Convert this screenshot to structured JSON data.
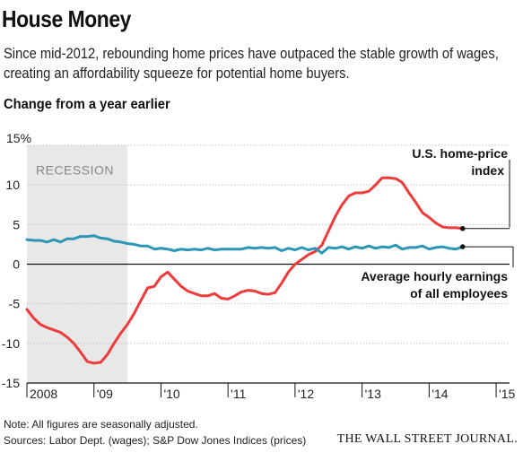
{
  "header": {
    "title": "House Money",
    "subtitle": "Since mid-2012, rebounding home prices have outpaced the stable growth of wages, creating an affordability squeeze for potential home buyers.",
    "axis_title": "Change from a year earlier"
  },
  "footer": {
    "note": "Note: All figures are seasonally adjusted.",
    "sources": "Sources: Labor Dept. (wages); S&P Dow Jones Indices (prices)",
    "brand": "THE WALL STREET JOURNAL."
  },
  "chart_data": {
    "type": "line",
    "title": "House Money",
    "subtitle": "Since mid-2012, rebounding home prices have outpaced the stable growth of wages, creating an affordability squeeze for potential home buyers.",
    "ylabel": "Change from a year earlier",
    "xlim": [
      2008.0,
      2015.2
    ],
    "ylim": [
      -15,
      15
    ],
    "y_ticks": [
      {
        "value": 15,
        "label": "15%"
      },
      {
        "value": 10,
        "label": "10"
      },
      {
        "value": 5,
        "label": "5"
      },
      {
        "value": 0,
        "label": "0"
      },
      {
        "value": -5,
        "label": "-5"
      },
      {
        "value": -10,
        "label": "-10"
      },
      {
        "value": -15,
        "label": "-15"
      }
    ],
    "x_ticks": [
      {
        "value": 2008,
        "label": "2008"
      },
      {
        "value": 2009,
        "label": "'09"
      },
      {
        "value": 2010,
        "label": "'10"
      },
      {
        "value": 2011,
        "label": "'11"
      },
      {
        "value": 2012,
        "label": "'12"
      },
      {
        "value": 2013,
        "label": "'13"
      },
      {
        "value": 2014,
        "label": "'14"
      },
      {
        "value": 2015,
        "label": "'15"
      }
    ],
    "grid": true,
    "shaded_regions": [
      {
        "label": "RECESSION",
        "start": 2008.0,
        "end": 2009.5
      }
    ],
    "series": [
      {
        "name": "U.S. home-price index",
        "color": "#ee3b3b",
        "points": [
          [
            2008.0,
            -5.7
          ],
          [
            2008.1,
            -6.8
          ],
          [
            2008.2,
            -7.6
          ],
          [
            2008.3,
            -8.0
          ],
          [
            2008.4,
            -8.3
          ],
          [
            2008.5,
            -8.6
          ],
          [
            2008.6,
            -9.2
          ],
          [
            2008.7,
            -10.0
          ],
          [
            2008.8,
            -11.1
          ],
          [
            2008.9,
            -12.3
          ],
          [
            2009.0,
            -12.5
          ],
          [
            2009.1,
            -12.4
          ],
          [
            2009.2,
            -11.4
          ],
          [
            2009.3,
            -10.0
          ],
          [
            2009.4,
            -8.7
          ],
          [
            2009.5,
            -7.6
          ],
          [
            2009.6,
            -6.2
          ],
          [
            2009.7,
            -4.6
          ],
          [
            2009.8,
            -3.0
          ],
          [
            2009.9,
            -2.8
          ],
          [
            2010.0,
            -1.6
          ],
          [
            2010.1,
            -1.0
          ],
          [
            2010.2,
            -1.9
          ],
          [
            2010.3,
            -2.8
          ],
          [
            2010.4,
            -3.4
          ],
          [
            2010.5,
            -3.7
          ],
          [
            2010.6,
            -4.0
          ],
          [
            2010.7,
            -4.0
          ],
          [
            2010.8,
            -3.7
          ],
          [
            2010.9,
            -4.3
          ],
          [
            2011.0,
            -4.4
          ],
          [
            2011.1,
            -4.0
          ],
          [
            2011.2,
            -3.5
          ],
          [
            2011.3,
            -3.3
          ],
          [
            2011.4,
            -3.4
          ],
          [
            2011.5,
            -3.7
          ],
          [
            2011.6,
            -3.8
          ],
          [
            2011.7,
            -3.6
          ],
          [
            2011.8,
            -2.4
          ],
          [
            2011.9,
            -1.0
          ],
          [
            2012.0,
            0.0
          ],
          [
            2012.1,
            0.6
          ],
          [
            2012.2,
            1.2
          ],
          [
            2012.3,
            1.6
          ],
          [
            2012.4,
            2.4
          ],
          [
            2012.5,
            4.2
          ],
          [
            2012.6,
            6.0
          ],
          [
            2012.7,
            7.5
          ],
          [
            2012.8,
            8.6
          ],
          [
            2012.9,
            9.0
          ],
          [
            2013.0,
            9.0
          ],
          [
            2013.1,
            9.2
          ],
          [
            2013.2,
            10.0
          ],
          [
            2013.3,
            10.9
          ],
          [
            2013.4,
            10.9
          ],
          [
            2013.5,
            10.8
          ],
          [
            2013.6,
            10.3
          ],
          [
            2013.7,
            9.0
          ],
          [
            2013.8,
            7.8
          ],
          [
            2013.9,
            6.5
          ],
          [
            2014.0,
            5.9
          ],
          [
            2014.1,
            5.2
          ],
          [
            2014.2,
            4.7
          ],
          [
            2014.3,
            4.6
          ],
          [
            2014.4,
            4.6
          ],
          [
            2014.5,
            4.5
          ]
        ]
      },
      {
        "name": "Average hourly earnings of all employees",
        "color": "#2b96b5",
        "points": [
          [
            2008.0,
            3.1
          ],
          [
            2008.1,
            3.0
          ],
          [
            2008.2,
            3.0
          ],
          [
            2008.3,
            2.8
          ],
          [
            2008.4,
            3.1
          ],
          [
            2008.5,
            2.8
          ],
          [
            2008.6,
            3.2
          ],
          [
            2008.7,
            3.2
          ],
          [
            2008.8,
            3.5
          ],
          [
            2008.9,
            3.5
          ],
          [
            2009.0,
            3.6
          ],
          [
            2009.1,
            3.3
          ],
          [
            2009.2,
            3.2
          ],
          [
            2009.3,
            2.9
          ],
          [
            2009.4,
            2.8
          ],
          [
            2009.5,
            2.6
          ],
          [
            2009.6,
            2.5
          ],
          [
            2009.7,
            2.3
          ],
          [
            2009.8,
            2.3
          ],
          [
            2009.9,
            1.9
          ],
          [
            2010.0,
            2.0
          ],
          [
            2010.1,
            1.9
          ],
          [
            2010.2,
            1.7
          ],
          [
            2010.3,
            1.9
          ],
          [
            2010.4,
            1.8
          ],
          [
            2010.5,
            1.9
          ],
          [
            2010.6,
            1.8
          ],
          [
            2010.7,
            2.0
          ],
          [
            2010.8,
            1.8
          ],
          [
            2010.9,
            1.9
          ],
          [
            2011.0,
            1.9
          ],
          [
            2011.1,
            1.9
          ],
          [
            2011.2,
            1.9
          ],
          [
            2011.3,
            2.1
          ],
          [
            2011.4,
            2.0
          ],
          [
            2011.5,
            2.1
          ],
          [
            2011.6,
            2.0
          ],
          [
            2011.7,
            2.1
          ],
          [
            2011.8,
            1.7
          ],
          [
            2011.9,
            2.0
          ],
          [
            2012.0,
            1.8
          ],
          [
            2012.1,
            2.1
          ],
          [
            2012.2,
            1.8
          ],
          [
            2012.3,
            2.0
          ],
          [
            2012.4,
            1.4
          ],
          [
            2012.5,
            2.1
          ],
          [
            2012.6,
            2.0
          ],
          [
            2012.7,
            2.2
          ],
          [
            2012.8,
            1.9
          ],
          [
            2012.9,
            2.2
          ],
          [
            2013.0,
            2.0
          ],
          [
            2013.1,
            2.3
          ],
          [
            2013.2,
            2.0
          ],
          [
            2013.3,
            2.2
          ],
          [
            2013.4,
            2.1
          ],
          [
            2013.5,
            2.4
          ],
          [
            2013.6,
            1.9
          ],
          [
            2013.7,
            2.1
          ],
          [
            2013.8,
            2.1
          ],
          [
            2013.9,
            2.3
          ],
          [
            2014.0,
            1.9
          ],
          [
            2014.1,
            2.1
          ],
          [
            2014.2,
            2.2
          ],
          [
            2014.3,
            2.0
          ],
          [
            2014.4,
            1.9
          ],
          [
            2014.5,
            2.2
          ]
        ]
      }
    ],
    "annotations": [
      {
        "series": 0,
        "lines": [
          "U.S. home-price",
          "index"
        ]
      },
      {
        "series": 1,
        "lines": [
          "Average hourly earnings",
          "of all employees"
        ]
      }
    ]
  }
}
